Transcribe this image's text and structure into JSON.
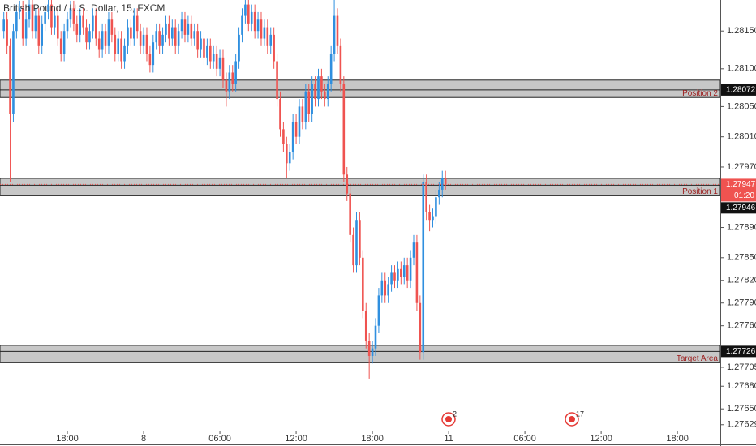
{
  "chart_data": {
    "type": "candlestick",
    "title": "British Pound / U.S. Dollar, 15, FXCM",
    "up_color": "#2f8fdf",
    "down_color": "#ef5350",
    "xlim": [
      -1.2,
      225.5
    ],
    "xticks": [
      {
        "value": 20,
        "label": "18:00"
      },
      {
        "value": 44,
        "label": "8"
      },
      {
        "value": 68,
        "label": "06:00"
      },
      {
        "value": 92,
        "label": "12:00"
      },
      {
        "value": 116,
        "label": "18:00"
      },
      {
        "value": 140,
        "label": "11"
      },
      {
        "value": 164,
        "label": "06:00"
      },
      {
        "value": 188,
        "label": "12:00"
      },
      {
        "value": 212,
        "label": "18:00"
      }
    ],
    "ylim": [
      1.27603,
      1.28191
    ],
    "yticks": [
      {
        "value": 1.2815,
        "label": "1.28150"
      },
      {
        "value": 1.281,
        "label": "1.28100"
      },
      {
        "value": 1.2805,
        "label": "1.28050"
      },
      {
        "value": 1.2801,
        "label": "1.28010"
      },
      {
        "value": 1.2797,
        "label": "1.27970"
      },
      {
        "value": 1.2789,
        "label": "1.27890"
      },
      {
        "value": 1.2785,
        "label": "1.27850"
      },
      {
        "value": 1.2782,
        "label": "1.27820"
      },
      {
        "value": 1.2779,
        "label": "1.27790"
      },
      {
        "value": 1.2776,
        "label": "1.27760"
      },
      1.27705,
      {
        "value": 1.2768,
        "label": "1.27680"
      },
      {
        "value": 1.2765,
        "label": "1.27650"
      },
      1.27629
    ],
    "grid": false,
    "candles": {
      "open": [
        1.2815,
        1.28165,
        1.2813,
        1.2804,
        1.2815,
        1.28175,
        1.2818,
        1.2814,
        1.28165,
        1.28185,
        1.2815,
        1.2817,
        1.2813,
        1.2816,
        1.28175,
        1.28185,
        1.28155,
        1.2817,
        1.2814,
        1.2812,
        1.2815,
        1.28165,
        1.2818,
        1.2816,
        1.28145,
        1.2817,
        1.28155,
        1.28135,
        1.2815,
        1.2817,
        1.2814,
        1.28125,
        1.2815,
        1.2813,
        1.28165,
        1.28145,
        1.2812,
        1.2814,
        1.2811,
        1.2813,
        1.28155,
        1.2814,
        1.2817,
        1.2815,
        1.2813,
        1.28145,
        1.2812,
        1.28105,
        1.28135,
        1.2815,
        1.2813,
        1.28145,
        1.2816,
        1.2814,
        1.28155,
        1.2813,
        1.2815,
        1.28165,
        1.28145,
        1.2816,
        1.2814,
        1.2815,
        1.28125,
        1.2814,
        1.28115,
        1.2813,
        1.2811,
        1.2812,
        1.281,
        1.28115,
        1.28085,
        1.2807,
        1.28095,
        1.2808,
        1.2811,
        1.28145,
        1.2817,
        1.28185,
        1.2816,
        1.28175,
        1.2815,
        1.28165,
        1.2814,
        1.28155,
        1.2813,
        1.28145,
        1.2811,
        1.2806,
        1.2802,
        1.28,
        1.27975,
        1.2799,
        1.2803,
        1.2801,
        1.2805,
        1.2803,
        1.2807,
        1.2804,
        1.2808,
        1.2806,
        1.2809,
        1.2807,
        1.2806,
        1.2808,
        1.2812,
        1.2817,
        1.2813,
        1.2808,
        1.2796,
        1.27935,
        1.2788,
        1.2784,
        1.279,
        1.2785,
        1.2778,
        1.2774,
        1.2772,
        1.2773,
        1.2776,
        1.278,
        1.2782,
        1.278,
        1.27815,
        1.2783,
        1.2782,
        1.27835,
        1.27825,
        1.2784,
        1.2782,
        1.2785,
        1.2787,
        1.2779,
        1.27725,
        1.2795,
        1.2791,
        1.279,
        1.27905,
        1.2793,
        1.2794,
        1.27955
      ],
      "high": [
        1.28175,
        1.28175,
        1.2814,
        1.2816,
        1.28185,
        1.2819,
        1.2819,
        1.28175,
        1.28195,
        1.28195,
        1.2818,
        1.2818,
        1.2817,
        1.28185,
        1.28195,
        1.28195,
        1.2818,
        1.2818,
        1.2815,
        1.2816,
        1.28175,
        1.2819,
        1.2819,
        1.2817,
        1.2818,
        1.2818,
        1.28165,
        1.2816,
        1.2818,
        1.2818,
        1.2815,
        1.2816,
        1.2816,
        1.28175,
        1.28175,
        1.28155,
        1.2815,
        1.2815,
        1.2814,
        1.28165,
        1.28165,
        1.2818,
        1.2818,
        1.2816,
        1.28155,
        1.28155,
        1.2813,
        1.28145,
        1.2816,
        1.2816,
        1.28155,
        1.2817,
        1.2817,
        1.28165,
        1.28165,
        1.2816,
        1.28175,
        1.28175,
        1.2817,
        1.2817,
        1.2816,
        1.2816,
        1.2815,
        1.2815,
        1.2814,
        1.2814,
        1.2813,
        1.2813,
        1.28125,
        1.28125,
        1.28095,
        1.28105,
        1.28105,
        1.2812,
        1.28155,
        1.2818,
        1.28195,
        1.28195,
        1.28185,
        1.28185,
        1.28175,
        1.28175,
        1.28165,
        1.28165,
        1.28155,
        1.28155,
        1.2812,
        1.2807,
        1.2803,
        1.2801,
        1.28,
        1.2804,
        1.2804,
        1.2806,
        1.2806,
        1.2808,
        1.2808,
        1.2809,
        1.2809,
        1.281,
        1.281,
        1.2808,
        1.2809,
        1.2813,
        1.28195,
        1.2818,
        1.2814,
        1.2809,
        1.2797,
        1.27945,
        1.2789,
        1.2791,
        1.2791,
        1.2786,
        1.2779,
        1.2775,
        1.2774,
        1.2777,
        1.2781,
        1.2783,
        1.2783,
        1.27825,
        1.2784,
        1.2784,
        1.27845,
        1.27845,
        1.2785,
        1.2785,
        1.2786,
        1.2788,
        1.2788,
        1.278,
        1.2796,
        1.2796,
        1.2792,
        1.27915,
        1.2794,
        1.2795,
        1.27965,
        1.27965
      ],
      "low": [
        1.2814,
        1.2812,
        1.2795,
        1.2803,
        1.2814,
        1.28165,
        1.2813,
        1.2813,
        1.28155,
        1.2814,
        1.2814,
        1.2812,
        1.2812,
        1.2815,
        1.28165,
        1.28145,
        1.28145,
        1.2813,
        1.2811,
        1.2811,
        1.2814,
        1.28155,
        1.2815,
        1.28135,
        1.28135,
        1.28145,
        1.28125,
        1.28125,
        1.2814,
        1.2813,
        1.28115,
        1.28115,
        1.2812,
        1.2812,
        1.28135,
        1.2811,
        1.2811,
        1.281,
        1.281,
        1.2812,
        1.2813,
        1.2813,
        1.2814,
        1.2812,
        1.2812,
        1.2811,
        1.28095,
        1.28095,
        1.28125,
        1.2812,
        1.2812,
        1.28135,
        1.2813,
        1.2813,
        1.2812,
        1.2812,
        1.2814,
        1.28135,
        1.28135,
        1.2813,
        1.2813,
        1.28115,
        1.28115,
        1.28105,
        1.28105,
        1.281,
        1.281,
        1.2809,
        1.2809,
        1.28075,
        1.2805,
        1.2806,
        1.2807,
        1.2807,
        1.281,
        1.28135,
        1.2816,
        1.2815,
        1.2815,
        1.2814,
        1.2814,
        1.2813,
        1.2813,
        1.2812,
        1.2812,
        1.281,
        1.2805,
        1.2801,
        1.2799,
        1.27955,
        1.27965,
        1.2798,
        1.28,
        1.28,
        1.2802,
        1.2802,
        1.2803,
        1.2803,
        1.2805,
        1.2805,
        1.2806,
        1.2805,
        1.2805,
        1.2807,
        1.2811,
        1.2812,
        1.2807,
        1.2795,
        1.27925,
        1.2787,
        1.2783,
        1.2783,
        1.2784,
        1.2777,
        1.2773,
        1.2769,
        1.2771,
        1.2772,
        1.2775,
        1.2779,
        1.2779,
        1.2779,
        1.27805,
        1.2781,
        1.2781,
        1.27815,
        1.27815,
        1.2781,
        1.2781,
        1.2784,
        1.2778,
        1.27715,
        1.27715,
        1.279,
        1.27885,
        1.2789,
        1.27895,
        1.2792,
        1.2793,
        1.2794
      ],
      "close": [
        1.28165,
        1.2813,
        1.2804,
        1.2815,
        1.28175,
        1.2818,
        1.2814,
        1.28165,
        1.28185,
        1.2815,
        1.2817,
        1.2813,
        1.2816,
        1.28175,
        1.28185,
        1.28155,
        1.2817,
        1.2814,
        1.2812,
        1.2815,
        1.28165,
        1.2818,
        1.2816,
        1.28145,
        1.2817,
        1.28155,
        1.28135,
        1.2815,
        1.2817,
        1.2814,
        1.28125,
        1.2815,
        1.2813,
        1.28165,
        1.28145,
        1.2812,
        1.2814,
        1.2811,
        1.2813,
        1.28155,
        1.2814,
        1.2817,
        1.2815,
        1.2813,
        1.28145,
        1.2812,
        1.28105,
        1.28135,
        1.2815,
        1.2813,
        1.28145,
        1.2816,
        1.2814,
        1.28155,
        1.2813,
        1.2815,
        1.28165,
        1.28145,
        1.2816,
        1.2814,
        1.2815,
        1.28125,
        1.2814,
        1.28115,
        1.2813,
        1.2811,
        1.2812,
        1.281,
        1.28115,
        1.28085,
        1.2807,
        1.28095,
        1.2808,
        1.2811,
        1.28145,
        1.2817,
        1.28185,
        1.2816,
        1.28175,
        1.2815,
        1.28165,
        1.2814,
        1.28155,
        1.2813,
        1.28145,
        1.2811,
        1.2806,
        1.2802,
        1.28,
        1.27975,
        1.2799,
        1.2803,
        1.2801,
        1.2805,
        1.2803,
        1.2807,
        1.2804,
        1.2808,
        1.2806,
        1.2809,
        1.2807,
        1.2806,
        1.2808,
        1.2812,
        1.2817,
        1.2813,
        1.2808,
        1.2796,
        1.27935,
        1.2788,
        1.2784,
        1.279,
        1.2785,
        1.2778,
        1.2774,
        1.2772,
        1.2773,
        1.2776,
        1.278,
        1.2782,
        1.278,
        1.27815,
        1.2783,
        1.2782,
        1.27835,
        1.27825,
        1.2784,
        1.2782,
        1.2785,
        1.2787,
        1.2779,
        1.27725,
        1.2795,
        1.2791,
        1.279,
        1.27905,
        1.2793,
        1.2794,
        1.27955,
        1.27947
      ]
    },
    "levels": [
      {
        "name": "Position 2",
        "top": 1.28085,
        "bottom": 1.28062,
        "value": 1.28072
      },
      {
        "name": "Position 1",
        "top": 1.27955,
        "bottom": 1.27932,
        "value": 1.27946
      },
      {
        "name": "Target Area",
        "top": 1.27734,
        "bottom": 1.27711,
        "value": 1.27726
      }
    ],
    "countdown": "01:20",
    "events": [
      "2",
      "17"
    ]
  }
}
